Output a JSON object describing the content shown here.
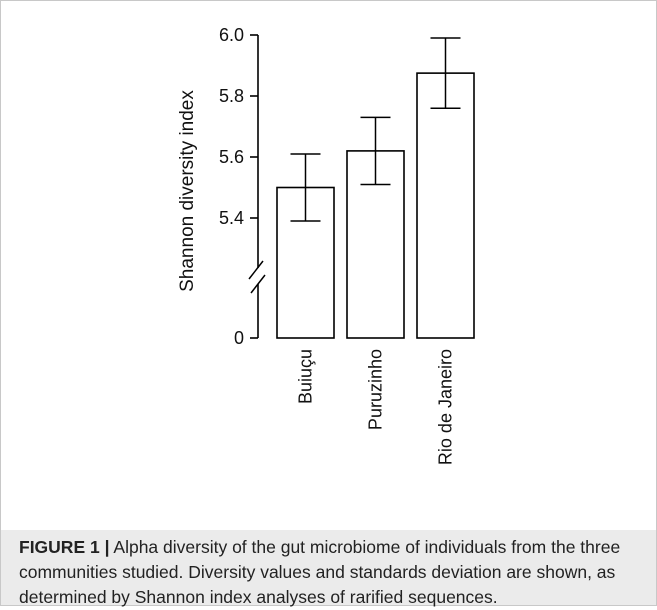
{
  "chart_data": {
    "type": "bar",
    "categories": [
      "Buiuçu",
      "Puruzinho",
      "Rio de Janeiro"
    ],
    "values": [
      5.5,
      5.62,
      5.875
    ],
    "error": [
      0.11,
      0.11,
      0.115
    ],
    "ylabel": "Shannon diversity index",
    "yticks": [
      "6.0",
      "5.8",
      "5.6",
      "5.4",
      "0"
    ],
    "ylim": [
      5.28,
      6.0
    ],
    "axis_break": true,
    "grid": false,
    "bar_fill": "#ffffff",
    "line_color": "#000000"
  },
  "caption": {
    "label": "FIGURE 1",
    "separator": "|",
    "text": "Alpha diversity of the gut microbiome of individuals from the three communities studied. Diversity values and standards deviation are shown, as determined by Shannon index analyses of rarified sequences."
  }
}
